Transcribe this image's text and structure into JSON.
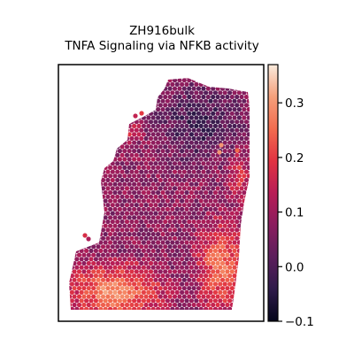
{
  "chart_data": {
    "type": "heatmap",
    "title_line1": "ZH916bulk",
    "title_line2": "TNFA Signaling via NFKB activity",
    "xlabel": "",
    "ylabel": "",
    "colorbar": {
      "min": -0.1,
      "max": 0.37,
      "ticks": [
        -0.1,
        0.0,
        0.1,
        0.2,
        0.3
      ],
      "tick_labels": [
        "−0.1",
        "0.0",
        "0.1",
        "0.2",
        "0.3"
      ],
      "colormap": "rocket",
      "stops": [
        "#03051a",
        "#2f1b4a",
        "#5c1f5c",
        "#8a1d5e",
        "#b81d56",
        "#e13342",
        "#f26c4f",
        "#f5a07b",
        "#faebdd"
      ]
    },
    "grid": false,
    "axes_ticks": false
  }
}
